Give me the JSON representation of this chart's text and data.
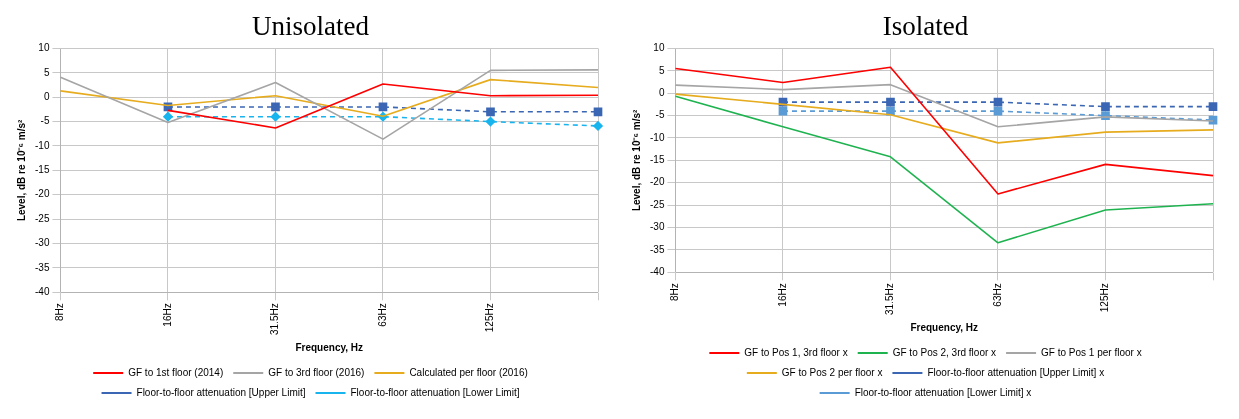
{
  "chart_data": [
    {
      "type": "line",
      "title": "Unisolated",
      "xlabel": "Frequency, Hz",
      "ylabel": "Level, dB re 10⁻⁶ m/s²",
      "categories": [
        "8Hz",
        "16Hz",
        "31.5Hz",
        "63Hz",
        "125Hz",
        null
      ],
      "ylim": [
        -40,
        10
      ],
      "yticks": [
        -40,
        -35,
        -30,
        -25,
        -20,
        -15,
        -10,
        -5,
        0,
        5,
        10
      ],
      "grid": true,
      "legend": "bottom",
      "marker": "none",
      "line_style": "solid",
      "series": [
        {
          "name": "GF to 1st floor (2014)",
          "color": "#ff0000",
          "values": [
            null,
            -2.7,
            -6.3,
            2.7,
            0.3,
            0.4
          ]
        },
        {
          "name": "GF to 3rd floor (2016)",
          "color": "#a5a5a5",
          "values": [
            4.1,
            -5.2,
            3.0,
            -8.6,
            5.5,
            5.6
          ]
        },
        {
          "name": "Calculated per floor (2016)",
          "color": "#e6ac1e",
          "values": [
            1.3,
            -1.7,
            0.3,
            -3.9,
            3.6,
            2.0
          ]
        },
        {
          "name": "Floor-to-floor attenuation [Upper Limit]",
          "color": "#3a66b4",
          "marker": "square",
          "line_style": "dashed",
          "values": [
            null,
            -2,
            -2,
            -2,
            -3,
            -3
          ]
        },
        {
          "name": "Floor-to-floor attenuation [Lower Limit]",
          "color": "#18b4ee",
          "marker": "diamond",
          "line_style": "dashed",
          "values": [
            null,
            -4,
            -4,
            -4,
            -5,
            -5.9
          ]
        }
      ]
    },
    {
      "type": "line",
      "title": "Isolated",
      "xlabel": "Frequency, Hz",
      "ylabel": "Level, dB re 10⁻⁶ m/s²",
      "categories": [
        "8Hz",
        "16Hz",
        "31.5Hz",
        "63Hz",
        "125Hz",
        null
      ],
      "ylim": [
        -40,
        10
      ],
      "yticks": [
        -40,
        -35,
        -30,
        -25,
        -20,
        -15,
        -10,
        -5,
        0,
        5,
        10
      ],
      "grid": true,
      "legend": "bottom",
      "marker": "none",
      "line_style": "solid",
      "series": [
        {
          "name": "GF to Pos 1, 3rd floor x",
          "color": "#ff0000",
          "values": [
            5.5,
            2.4,
            5.8,
            -22.5,
            -15.9,
            -18.4
          ]
        },
        {
          "name": "GF to Pos 2, 3rd floor x",
          "color": "#1fb350",
          "values": [
            -0.7,
            -7.5,
            -14.2,
            -33.4,
            -26.1,
            -24.7
          ]
        },
        {
          "name": "GF to Pos 1 per floor x",
          "color": "#a5a5a5",
          "values": [
            1.8,
            0.8,
            1.9,
            -7.5,
            -5.3,
            -6.2
          ]
        },
        {
          "name": "GF to Pos 2 per floor x",
          "color": "#e6ac1e",
          "values": [
            -0.2,
            -2.5,
            -4.8,
            -11.1,
            -8.7,
            -8.2
          ]
        },
        {
          "name": "Floor-to-floor attenuation [Upper Limit] x",
          "color": "#3a66b4",
          "marker": "square",
          "line_style": "dashed",
          "values": [
            null,
            -2,
            -2,
            -2,
            -3,
            -3
          ]
        },
        {
          "name": "Floor-to-floor attenuation [Lower Limit] x",
          "color": "#5b9bd5",
          "marker": "square",
          "line_style": "dashed",
          "values": [
            null,
            -4,
            -4,
            -4,
            -5,
            -6
          ]
        }
      ]
    }
  ]
}
